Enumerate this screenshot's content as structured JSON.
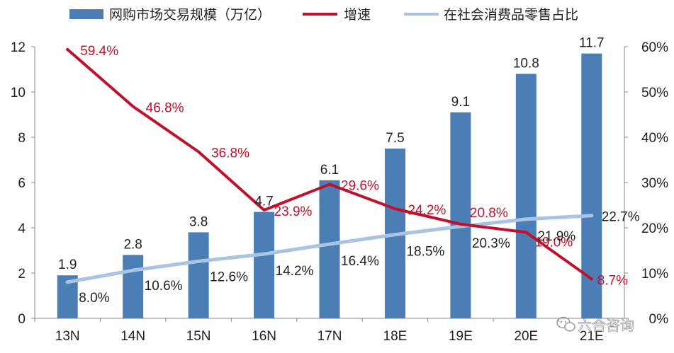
{
  "chart_data": {
    "type": "bar+line",
    "categories": [
      "13N",
      "14N",
      "15N",
      "16N",
      "17N",
      "18E",
      "19E",
      "20E",
      "21E"
    ],
    "series": [
      {
        "name": "网购市场交易规模（万亿）",
        "kind": "bar",
        "axis": "left",
        "color": "#4a7eb5",
        "values": [
          1.9,
          2.8,
          3.8,
          4.7,
          6.1,
          7.5,
          9.1,
          10.8,
          11.7
        ],
        "labels": [
          "1.9",
          "2.8",
          "3.8",
          "4.7",
          "6.1",
          "7.5",
          "9.1",
          "10.8",
          "11.7"
        ]
      },
      {
        "name": "增速",
        "kind": "line",
        "axis": "right",
        "color": "#c0112b",
        "values": [
          59.4,
          46.8,
          36.8,
          23.9,
          29.6,
          24.2,
          20.8,
          19.0,
          8.7
        ],
        "labels": [
          "59.4%",
          "46.8%",
          "36.8%",
          "23.9%",
          "29.6%",
          "24.2%",
          "20.8%",
          "19.0%",
          "8.7%"
        ]
      },
      {
        "name": "在社会消费品零售占比",
        "kind": "line",
        "axis": "right",
        "color": "#a9c4e2",
        "values": [
          8.0,
          10.6,
          12.6,
          14.2,
          16.4,
          18.5,
          20.3,
          21.9,
          22.7
        ],
        "labels": [
          "8.0%",
          "10.6%",
          "12.6%",
          "14.2%",
          "16.4%",
          "18.5%",
          "20.3%",
          "21.9%",
          "22.7%"
        ]
      }
    ],
    "left_axis": {
      "ylim": [
        0,
        12
      ],
      "ticks": [
        "0",
        "2",
        "4",
        "6",
        "8",
        "10",
        "12"
      ]
    },
    "right_axis": {
      "ylim": [
        0,
        60
      ],
      "ticks": [
        "0%",
        "10%",
        "20%",
        "30%",
        "40%",
        "50%",
        "60%"
      ]
    },
    "legend_position": "top",
    "grid": false
  },
  "watermark": {
    "icon": "wechat-icon",
    "text": "六合咨询"
  }
}
